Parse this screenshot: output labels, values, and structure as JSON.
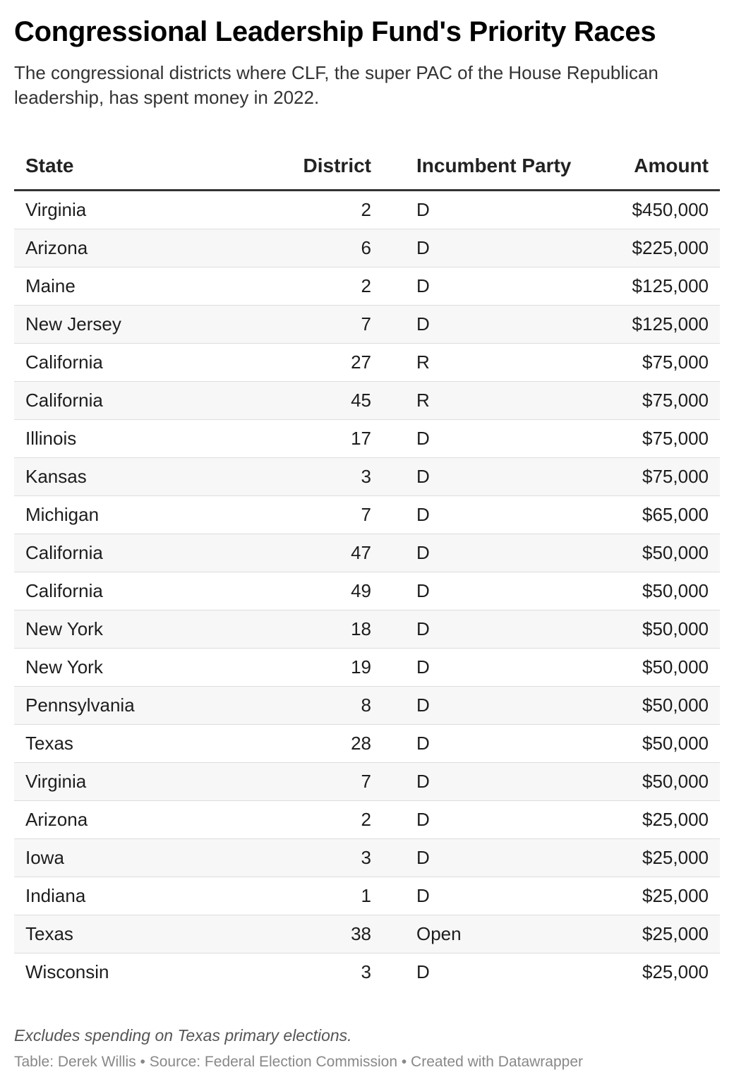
{
  "title": "Congressional Leadership Fund's Priority Races",
  "subtitle": "The congressional districts where CLF, the super PAC of the House Republican leadership, has spent money in 2022.",
  "notes": "Excludes spending on Texas primary elections.",
  "source": "Table: Derek Willis • Source: Federal Election Commission • Created with Datawrapper",
  "chart_data": {
    "type": "table",
    "columns": [
      "State",
      "District",
      "Incumbent Party",
      "Amount"
    ],
    "rows": [
      [
        "Virginia",
        "2",
        "D",
        "$450,000"
      ],
      [
        "Arizona",
        "6",
        "D",
        "$225,000"
      ],
      [
        "Maine",
        "2",
        "D",
        "$125,000"
      ],
      [
        "New Jersey",
        "7",
        "D",
        "$125,000"
      ],
      [
        "California",
        "27",
        "R",
        "$75,000"
      ],
      [
        "California",
        "45",
        "R",
        "$75,000"
      ],
      [
        "Illinois",
        "17",
        "D",
        "$75,000"
      ],
      [
        "Kansas",
        "3",
        "D",
        "$75,000"
      ],
      [
        "Michigan",
        "7",
        "D",
        "$65,000"
      ],
      [
        "California",
        "47",
        "D",
        "$50,000"
      ],
      [
        "California",
        "49",
        "D",
        "$50,000"
      ],
      [
        "New York",
        "18",
        "D",
        "$50,000"
      ],
      [
        "New York",
        "19",
        "D",
        "$50,000"
      ],
      [
        "Pennsylvania",
        "8",
        "D",
        "$50,000"
      ],
      [
        "Texas",
        "28",
        "D",
        "$50,000"
      ],
      [
        "Virginia",
        "7",
        "D",
        "$50,000"
      ],
      [
        "Arizona",
        "2",
        "D",
        "$25,000"
      ],
      [
        "Iowa",
        "3",
        "D",
        "$25,000"
      ],
      [
        "Indiana",
        "1",
        "D",
        "$25,000"
      ],
      [
        "Texas",
        "38",
        "Open",
        "$25,000"
      ],
      [
        "Wisconsin",
        "3",
        "D",
        "$25,000"
      ]
    ]
  }
}
